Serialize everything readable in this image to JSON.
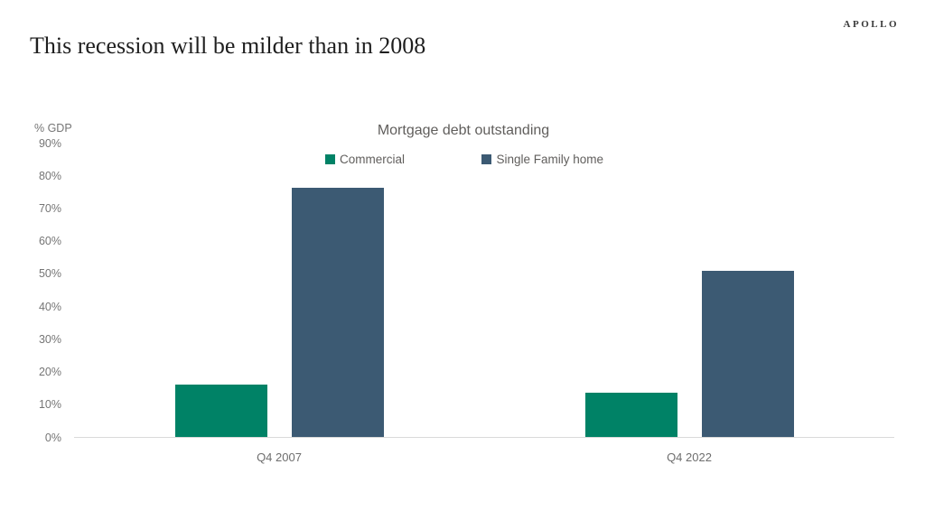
{
  "brand": {
    "logo": "APOLLO"
  },
  "page_title": "This recession will be milder than in 2008",
  "chart_data": {
    "type": "bar",
    "title": "Mortgage debt outstanding",
    "unit_label": "% GDP",
    "categories": [
      "Q4 2007",
      "Q4 2022"
    ],
    "series": [
      {
        "name": "Commercial",
        "color": "#008266",
        "values": [
          16.4,
          13.8
        ]
      },
      {
        "name": "Single Family home",
        "color": "#3C5A73",
        "values": [
          76.6,
          51.1
        ]
      }
    ],
    "ylabel": "",
    "xlabel": "",
    "ylim": [
      0,
      90
    ],
    "ytick_step": 10,
    "ytick_suffix": "%",
    "grid": false,
    "legend_position": "top-center",
    "colors": {
      "axis_line": "#d9d9d9",
      "tick_text": "#757575",
      "label_text": "#605e5c",
      "title_text": "#1f1f1f"
    }
  }
}
